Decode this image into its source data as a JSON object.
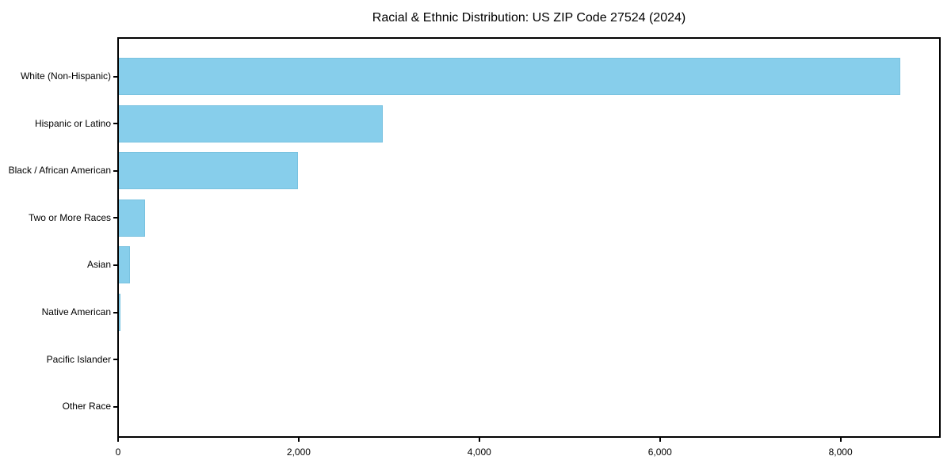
{
  "chart_data": {
    "type": "bar",
    "orientation": "horizontal",
    "title": "Racial & Ethnic Distribution: US ZIP Code 27524 (2024)",
    "categories": [
      "White (Non-Hispanic)",
      "Hispanic or Latino",
      "Black / African American",
      "Two or More Races",
      "Asian",
      "Native American",
      "Pacific Islander",
      "Other Race"
    ],
    "values": [
      8660,
      2930,
      1990,
      300,
      135,
      30,
      0,
      0
    ],
    "xlabel": "",
    "ylabel": "",
    "xlim": [
      0,
      9100
    ],
    "x_ticks": [
      0,
      2000,
      4000,
      6000,
      8000
    ],
    "x_tick_labels": [
      "0",
      "2,000",
      "4,000",
      "6,000",
      "8,000"
    ],
    "bar_color": "#87CEEB",
    "bar_edge_color": "#79c2e0",
    "axis_color": "#000000",
    "grid": false,
    "legend": false
  }
}
